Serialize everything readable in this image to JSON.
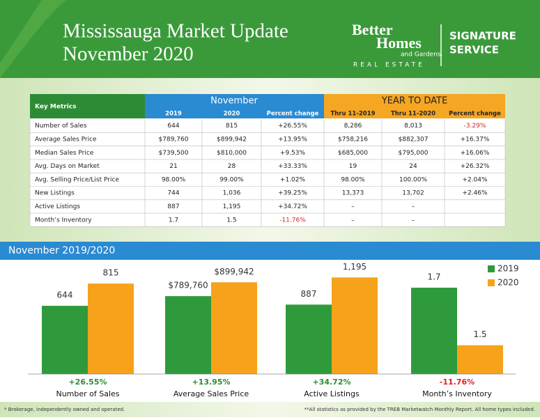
{
  "header": {
    "title_line1": "Mississauga Market Update",
    "title_line2": "November 2020",
    "brand_line1": "Better",
    "brand_line2": "Homes",
    "brand_line3": "and Gardens.",
    "brand_line4": "REAL ESTATE",
    "service_line1": "SIGNATURE",
    "service_line2": "SERVICE"
  },
  "table": {
    "key": "Key Metrics",
    "november": "November",
    "ytd": "YEAR TO DATE",
    "subheaders": [
      "2019",
      "2020",
      "Percent change",
      "Thru 11-2019",
      "Thru 11-2020",
      "Percent change"
    ],
    "rows": [
      [
        "Number of Sales",
        "644",
        "815",
        "+26.55%",
        "8,286",
        "8,013",
        "-3.29%"
      ],
      [
        "Average Sales Price",
        "$789,760",
        "$899,942",
        "+13.95%",
        "$758,216",
        "$882,307",
        "+16.37%"
      ],
      [
        "Median Sales Price",
        "$739,500",
        "$810,000",
        "+9.53%",
        "$685,000",
        "$795,000",
        "+16.06%"
      ],
      [
        "Avg. Days on Market",
        "21",
        "28",
        "+33.33%",
        "19",
        "24",
        "+26.32%"
      ],
      [
        "Avg. Selling Price/List Price",
        "98.00%",
        "99.00%",
        "+1.02%",
        "98.00%",
        "100.00%",
        "+2.04%"
      ],
      [
        "New Listings",
        "744",
        "1,036",
        "+39.25%",
        "13,373",
        "13,702",
        "+2.46%"
      ],
      [
        "Active Listings",
        "887",
        "1,195",
        "+34.72%",
        "–",
        "–",
        ""
      ],
      [
        "Month’s Inventory",
        "1.7",
        "1.5",
        "-11.76%",
        "–",
        "–",
        ""
      ]
    ]
  },
  "chart_data": {
    "type": "bar",
    "title": "November 2019/2020",
    "series": [
      {
        "name": "2019",
        "color": "#2f9a3b"
      },
      {
        "name": "2020",
        "color": "#f7a21b"
      }
    ],
    "panels": [
      {
        "label": "Number of Sales",
        "change": "+26.55%",
        "values": [
          644,
          815
        ],
        "value_labels": [
          "644",
          "815"
        ],
        "ylim": [
          120,
          960
        ]
      },
      {
        "label": "Average Sales Price",
        "change": "+13.95%",
        "values": [
          789760,
          899942
        ],
        "value_labels": [
          "$789,760",
          "$899,942"
        ],
        "ylim": [
          170000,
          1040000
        ]
      },
      {
        "label": "Active Listings",
        "change": "+34.72%",
        "values": [
          887,
          1195
        ],
        "value_labels": [
          "887",
          "1,195"
        ],
        "ylim": [
          100,
          1340
        ]
      },
      {
        "label": "Month’s Inventory",
        "change": "-11.76%",
        "values": [
          1.7,
          1.5
        ],
        "value_labels": [
          "1.7",
          "1.5"
        ],
        "ylim": [
          1.4,
          1.78
        ]
      }
    ]
  },
  "footer": {
    "left": "* Brokerage, independently owned and operated.",
    "right": "**All statistics as provided by the TREB Marketwatch Monthly Report. All home types included."
  }
}
